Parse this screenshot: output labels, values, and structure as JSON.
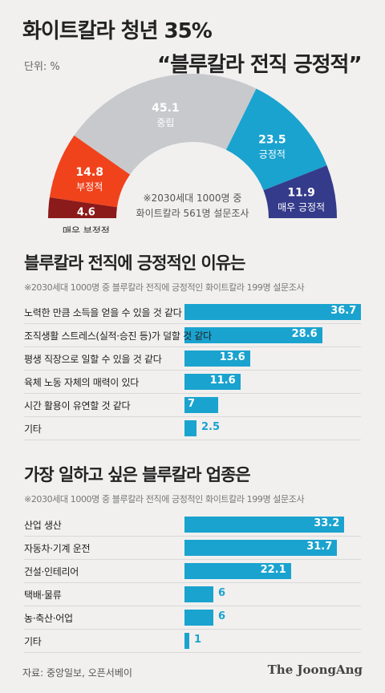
{
  "header": {
    "title_line1": "화이트칼라 청년 35%",
    "title_line2": "“블루칼라 전직 긍정적”",
    "unit": "단위: %"
  },
  "chart_data": [
    {
      "type": "pie",
      "categories": [
        "매우 부정적",
        "부정적",
        "중립",
        "긍정적",
        "매우 긍정적"
      ],
      "values": [
        4.6,
        14.8,
        45.1,
        23.5,
        11.9
      ],
      "colors": [
        "#8b1a1a",
        "#f0431c",
        "#c7c9cc",
        "#1aa3cf",
        "#343b8b"
      ],
      "note_line1": "※2030세대 1000명 중",
      "note_line2": "화이트칼라 561명 설문조사"
    },
    {
      "type": "bar",
      "title": "블루칼라 전직에 긍정적인 이유는",
      "note": "※2030세대 1000명 중 블루칼라 전직에 긍정적인 화이트칼라 199명 설문조사",
      "categories": [
        "노력한 만큼 소득을 얻을 수 있을 것 같다",
        "조직생활 스트레스(실적·승진 등)가 덜할 것 같다",
        "평생 직장으로 일할 수 있을 것 같다",
        "육체 노동 자체의 매력이 있다",
        "시간 활용이 유연할 것 같다",
        "기타"
      ],
      "values": [
        36.7,
        28.6,
        13.6,
        11.6,
        7,
        2.5
      ],
      "color": "#1aa3cf"
    },
    {
      "type": "bar",
      "title": "가장 일하고 싶은 블루칼라 업종은",
      "note": "※2030세대 1000명 중 블루칼라 전직에 긍정적인 화이트칼라 199명 설문조사",
      "categories": [
        "산업 생산",
        "자동차·기계 운전",
        "건설·인테리어",
        "택배·물류",
        "농·축산·어업",
        "기타"
      ],
      "values": [
        33.2,
        31.7,
        22.1,
        6,
        6,
        1
      ],
      "color": "#1aa3cf"
    }
  ],
  "footer": {
    "source": "자료: 중앙일보, 오픈서베이",
    "logo": "The JoongAng"
  }
}
